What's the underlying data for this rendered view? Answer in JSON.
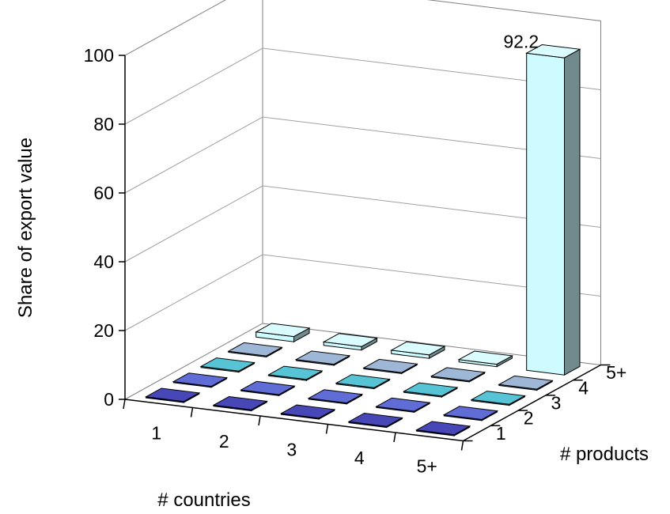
{
  "chart_data": {
    "type": "bar3d",
    "title": "",
    "ylabel": "Share of export value",
    "xlabel": "# countries",
    "zlabel": "# products",
    "ylim": [
      0,
      100
    ],
    "yticks": [
      "0",
      "20",
      "40",
      "60",
      "80",
      "100"
    ],
    "countries": [
      "1",
      "2",
      "3",
      "4",
      "5+"
    ],
    "products": [
      "1",
      "2",
      "3",
      "4",
      "5+"
    ],
    "values": [
      [
        0.3,
        0.3,
        0.3,
        0.3,
        0.3
      ],
      [
        0.3,
        0.3,
        0.3,
        0.3,
        0.3
      ],
      [
        0.3,
        0.3,
        0.3,
        0.3,
        0.3
      ],
      [
        0.3,
        0.3,
        0.3,
        0.3,
        0.3
      ],
      [
        1.5,
        1.0,
        1.0,
        0.7,
        92.2
      ]
    ],
    "data_labels": [
      {
        "country": "5+",
        "product": "5+",
        "text": "92.2"
      }
    ],
    "row_colors": [
      "#0a0aa0",
      "#2b3cc8",
      "#1fb0c8",
      "#7f9fc8",
      "#cdfbff"
    ],
    "grid": true
  }
}
